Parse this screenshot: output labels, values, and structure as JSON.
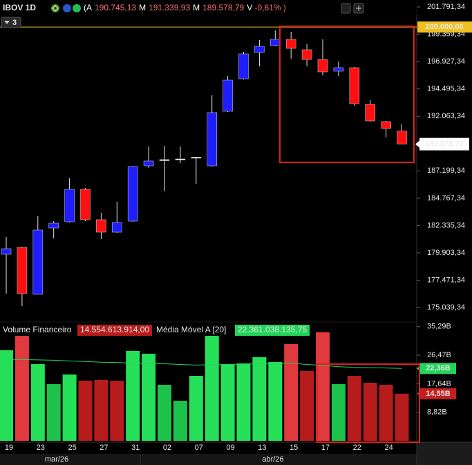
{
  "header": {
    "symbol": "IBOV 1D",
    "open_label": "(A",
    "open": "190.745,13",
    "high_label": "M",
    "high": "191.339,93",
    "low_label": "M",
    "low": "189.578,79",
    "change_label": "V",
    "change": "-0,61% )",
    "badge": "3"
  },
  "chart_data": [
    {
      "type": "candlestick",
      "categories": [
        "19",
        null,
        "23",
        null,
        "25",
        null,
        "27",
        null,
        "31",
        null,
        "02",
        null,
        "07",
        null,
        "09",
        null,
        "13",
        null,
        "15",
        null,
        "17",
        null,
        "22",
        null,
        "24",
        null
      ],
      "open": [
        179778,
        180393,
        176211,
        182114,
        182668,
        185558,
        182852,
        181745,
        182729,
        187648,
        188140,
        188202,
        188386,
        187648,
        192506,
        195396,
        197733,
        198348,
        198901,
        197979,
        197118,
        196073,
        196380,
        193121,
        191584,
        190745.13
      ],
      "high": [
        181315,
        180454,
        183160,
        182729,
        186542,
        185681,
        183467,
        184451,
        187648,
        189370,
        189432,
        189370,
        188448,
        193920,
        195642,
        197794,
        198840,
        199700,
        199577,
        198471,
        198901,
        196933,
        196441,
        193490,
        191645,
        191339.93
      ],
      "low": [
        176273,
        175166,
        176211,
        181192,
        182606,
        182729,
        181130,
        181684,
        182668,
        187464,
        185373,
        187894,
        186050,
        187587,
        192445,
        195335,
        196503,
        198286,
        197179,
        196503,
        195704,
        195642,
        192998,
        191584,
        190169,
        189578.79
      ],
      "close": [
        180270,
        176273,
        181930,
        182545,
        185558,
        182852,
        181745,
        182606,
        187587,
        188079,
        188202,
        188263,
        188420,
        192383,
        195273,
        197610,
        198286,
        198901,
        198102,
        197118,
        196011,
        196380,
        193182,
        191645,
        190969,
        189578.79
      ],
      "colors": [
        "#1e1eff",
        "#ff1010",
        "#1e1eff",
        "#1e1eff",
        "#1e1eff",
        "#ff1010",
        "#ff1010",
        "#1e1eff",
        "#1e1eff",
        "#1e1eff",
        "#ffffff",
        "#ffffff",
        "#ffffff",
        "#1e1eff",
        "#1e1eff",
        "#1e1eff",
        "#1e1eff",
        "#1e1eff",
        "#ff1010",
        "#ff1010",
        "#ff1010",
        "#1e1eff",
        "#ff1010",
        "#ff1010",
        "#ff1010",
        "#ff1010"
      ],
      "ylim": [
        173813,
        202406
      ],
      "yticks": [
        {
          "value": 175039.34,
          "label": "175.039,34"
        },
        {
          "value": 177471.34,
          "label": "177.471,34"
        },
        {
          "value": 179903.34,
          "label": "179.903,34"
        },
        {
          "value": 182335.34,
          "label": "182.335,34"
        },
        {
          "value": 184767.34,
          "label": "184.767,34"
        },
        {
          "value": 187199.34,
          "label": "187.199,34"
        },
        {
          "value": 192063.34,
          "label": "192.063,34"
        },
        {
          "value": 194495.34,
          "label": "194.495,34"
        },
        {
          "value": 196927.34,
          "label": "196.927,34"
        },
        {
          "value": 199359.34,
          "label": "199.359,34"
        },
        {
          "value": 201791.34,
          "label": "201.791,34"
        }
      ],
      "reference_line": {
        "value": 200000,
        "label": "200.000,00",
        "color": "#f0c020"
      },
      "last_price": {
        "value": 189578.79,
        "label": "189.578,79"
      },
      "period_labels": [
        "mar/26",
        "abr/26"
      ]
    },
    {
      "type": "bar",
      "series": [
        {
          "name": "Volume Financeiro",
          "legend_value": "14.554.613.914,00",
          "last_label": "14,55B",
          "color": "#c41e1e",
          "values": [
            27.98,
            32.46,
            23.7,
            17.51,
            20.5,
            18.58,
            18.79,
            18.58,
            27.76,
            26.91,
            17.3,
            12.39,
            20.07,
            32.46,
            23.7,
            23.92,
            25.84,
            24.35,
            29.9,
            21.57,
            33.53,
            17.51,
            20.07,
            17.94,
            17.3,
            14.55
          ],
          "colors": [
            "#26e05a",
            "#e0393e",
            "#26e05a",
            "#1dc24b",
            "#26e05a",
            "#b71c1c",
            "#b71c1c",
            "#b71c1c",
            "#26e05a",
            "#26e05a",
            "#1dc24b",
            "#1dc24b",
            "#26e05a",
            "#26e05a",
            "#26e05a",
            "#26e05a",
            "#26e05a",
            "#26e05a",
            "#e0393e",
            "#b71c1c",
            "#e0393e",
            "#1dc24b",
            "#b71c1c",
            "#b71c1c",
            "#b71c1c",
            "#b71c1c"
          ]
        },
        {
          "name": "Média Móvel A [20]",
          "legend_value": "22.361.038.135,75",
          "last_label": "22,36B",
          "type": "line",
          "color": "#22d45a",
          "values": [
            25.2,
            25.1,
            25.0,
            24.9,
            24.7,
            24.5,
            24.3,
            24.2,
            24.0,
            23.9,
            23.8,
            23.6,
            23.4,
            23.5,
            23.6,
            23.7,
            23.8,
            23.9,
            24.0,
            23.6,
            23.3,
            22.9,
            22.7,
            22.6,
            22.5,
            22.36
          ]
        }
      ],
      "ylim": [
        0,
        36.73
      ],
      "yticks": [
        {
          "value": 8.82,
          "label": "8,82B"
        },
        {
          "value": 17.64,
          "label": "17,64B"
        },
        {
          "value": 26.47,
          "label": "26,47B"
        },
        {
          "value": 35.29,
          "label": "35,29B"
        }
      ]
    }
  ]
}
